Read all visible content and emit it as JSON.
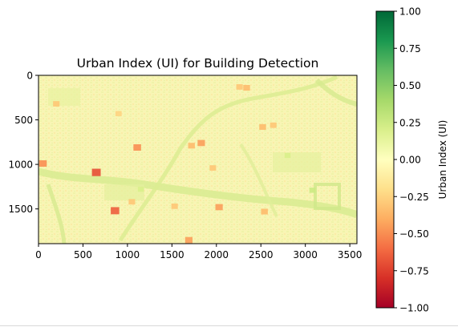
{
  "chart_data": {
    "type": "heatmap",
    "title": "Urban Index (UI) for Building Detection",
    "xlabel": "",
    "ylabel": "",
    "xlim": [
      0,
      3580
    ],
    "ylim": [
      1890,
      0
    ],
    "x_ticks": [
      "0",
      "500",
      "1000",
      "1500",
      "2000",
      "2500",
      "3000",
      "3500"
    ],
    "x_tick_values": [
      0,
      500,
      1000,
      1500,
      2000,
      2500,
      3000,
      3500
    ],
    "y_ticks": [
      "0",
      "500",
      "1000",
      "1500"
    ],
    "y_tick_values": [
      0,
      500,
      1000,
      1500
    ],
    "colormap": "RdYlGn",
    "colorbar": {
      "label": "Urban Index (UI)",
      "range": [
        -1.0,
        1.0
      ],
      "ticks": [
        "1.00",
        "0.75",
        "0.50",
        "0.25",
        "0.00",
        "−0.25",
        "−0.50",
        "−0.75",
        "−1.00"
      ],
      "tick_values": [
        1.0,
        0.75,
        0.5,
        0.25,
        0.0,
        -0.25,
        -0.5,
        -0.75,
        -1.0
      ]
    },
    "grid": false,
    "background_value": 0.0,
    "features": [
      {
        "x": 2340,
        "y": 140,
        "value": -0.35
      },
      {
        "x": 2260,
        "y": 130,
        "value": -0.3
      },
      {
        "x": 1830,
        "y": 760,
        "value": -0.45
      },
      {
        "x": 1720,
        "y": 790,
        "value": -0.35
      },
      {
        "x": 650,
        "y": 1090,
        "value": -0.7
      },
      {
        "x": 1110,
        "y": 810,
        "value": -0.5
      },
      {
        "x": 2030,
        "y": 1480,
        "value": -0.45
      },
      {
        "x": 2520,
        "y": 580,
        "value": -0.35
      },
      {
        "x": 2640,
        "y": 560,
        "value": -0.3
      },
      {
        "x": 1530,
        "y": 1470,
        "value": -0.3
      },
      {
        "x": 2540,
        "y": 1530,
        "value": -0.35
      },
      {
        "x": 50,
        "y": 990,
        "value": -0.5
      },
      {
        "x": 860,
        "y": 1520,
        "value": -0.65
      },
      {
        "x": 1690,
        "y": 1850,
        "value": -0.45
      },
      {
        "x": 1960,
        "y": 1040,
        "value": -0.3
      },
      {
        "x": 200,
        "y": 320,
        "value": -0.3
      },
      {
        "x": 1050,
        "y": 1420,
        "value": -0.3
      },
      {
        "x": 900,
        "y": 430,
        "value": -0.25
      },
      {
        "x": 3080,
        "y": 1290,
        "value": 0.25
      },
      {
        "x": 1150,
        "y": 1280,
        "value": 0.2
      },
      {
        "x": 2800,
        "y": 900,
        "value": 0.2
      }
    ]
  }
}
